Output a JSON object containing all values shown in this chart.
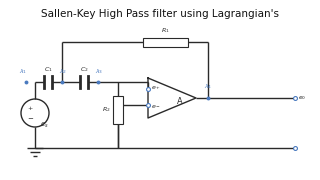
{
  "title": "Sallen-Key High Pass filter using Lagrangian's",
  "title_fontsize": 7.5,
  "bg_color": "#ffffff",
  "border_color": "#c8d0d8",
  "line_color": "#000000",
  "wire_color": "#2a2a2a",
  "node_color": "#4a7abf",
  "component_color": "#2a2a2a",
  "figsize": [
    3.2,
    1.8
  ],
  "dpi": 100,
  "xlim": [
    0,
    320
  ],
  "ylim": [
    0,
    180
  ]
}
